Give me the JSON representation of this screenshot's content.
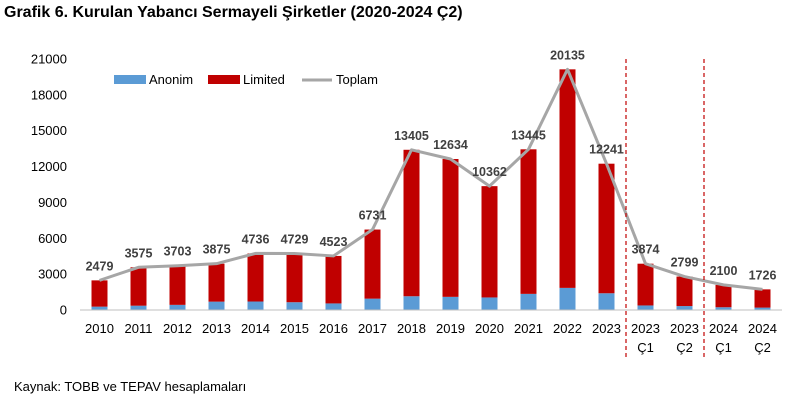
{
  "title": "Grafik 6. Kurulan Yabancı Sermayeli Şirketler (2020-2024 Ç2)",
  "source": "Kaynak: TOBB ve TEPAV hesaplamaları",
  "colors": {
    "anonim": "#5b9bd5",
    "limited": "#c00000",
    "toplam": "#a6a6a6",
    "divider": "#c00000",
    "grid": "#d9d9d9"
  },
  "chart_data": {
    "type": "bar",
    "stacked": true,
    "categories": [
      [
        "2010"
      ],
      [
        "2011"
      ],
      [
        "2012"
      ],
      [
        "2013"
      ],
      [
        "2014"
      ],
      [
        "2015"
      ],
      [
        "2016"
      ],
      [
        "2017"
      ],
      [
        "2018"
      ],
      [
        "2019"
      ],
      [
        "2020"
      ],
      [
        "2021"
      ],
      [
        "2022"
      ],
      [
        "2023"
      ],
      [
        "2023",
        "Ç1"
      ],
      [
        "2023",
        "Ç2"
      ],
      [
        "2024",
        "Ç1"
      ],
      [
        "2024",
        "Ç2"
      ]
    ],
    "series": [
      {
        "name": "Anonim",
        "type": "bar",
        "color": "#5b9bd5",
        "values": [
          280,
          360,
          430,
          700,
          710,
          650,
          550,
          950,
          1150,
          1100,
          1050,
          1350,
          1850,
          1400,
          380,
          330,
          230,
          200
        ]
      },
      {
        "name": "Limited",
        "type": "bar",
        "color": "#c00000",
        "values": [
          2199,
          3215,
          3273,
          3175,
          4026,
          4079,
          3973,
          5781,
          12255,
          11534,
          9312,
          12095,
          18285,
          10841,
          3494,
          2469,
          1870,
          1526
        ]
      },
      {
        "name": "Toplam",
        "type": "line",
        "color": "#a6a6a6",
        "values": [
          2479,
          3575,
          3703,
          3875,
          4736,
          4729,
          4523,
          6731,
          13405,
          12634,
          10362,
          13445,
          20135,
          12241,
          3874,
          2799,
          2100,
          1726
        ]
      }
    ],
    "data_labels": [
      "2479",
      "3575",
      "3703",
      "3875",
      "4736",
      "4729",
      "4523",
      "6731",
      "13405",
      "12634",
      "10362",
      "13445",
      "20135",
      "12241",
      "3874",
      "2799",
      "2100",
      "1726"
    ],
    "ylim": [
      0,
      21000
    ],
    "yticks": [
      0,
      3000,
      6000,
      9000,
      12000,
      15000,
      18000,
      21000
    ],
    "ytick_labels": [
      "0",
      "3000",
      "6000",
      "9000",
      "12000",
      "15000",
      "18000",
      "21000"
    ],
    "dividers_after_index": [
      13,
      15
    ],
    "grid": false,
    "legend_position": "top-left"
  }
}
